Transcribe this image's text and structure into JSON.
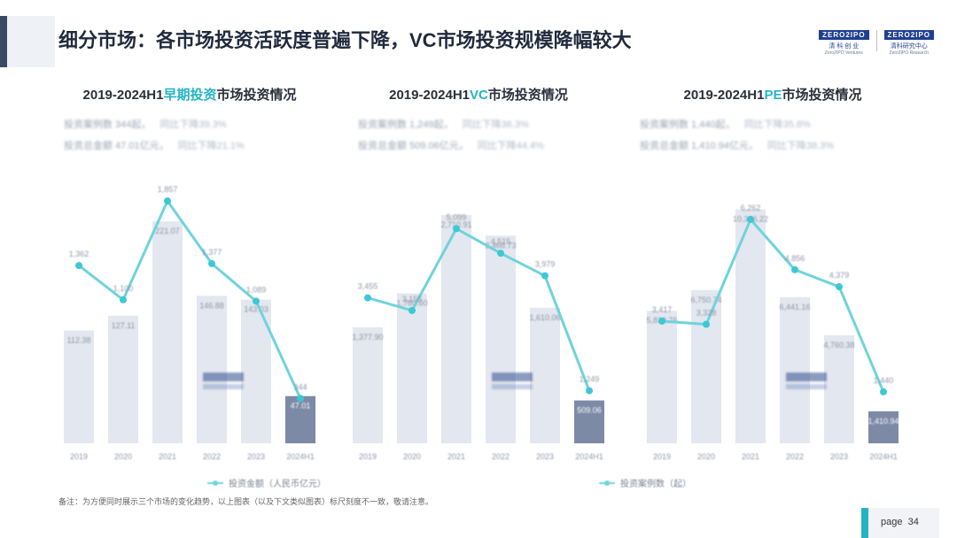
{
  "header": {
    "title": "细分市场：各市场投资活跃度普遍下降，VC市场投资规模降幅较大",
    "logo1": {
      "mark": "ZERO2IPO",
      "cn": "清 科 创 业",
      "en": "Zero2IPO Ventures"
    },
    "logo2": {
      "mark": "ZERO2IPO",
      "cn": "清科研究中心",
      "en": "Zero2IPO Research"
    }
  },
  "note": "备注：为方便同时展示三个市场的变化趋势，以上图表（以及下文类似图表）标尺刻度不一致，敬请注意。",
  "page": {
    "label": "page",
    "number": "34"
  },
  "legend": {
    "line": "投资案例数（起）",
    "bar": "投资金额（人民币亿元）"
  },
  "colors": {
    "bar": "#e3e7ef",
    "bar_last": "#7c8aa6",
    "line": "#6fd3dc",
    "accent": "#23b4c4",
    "title": "#1f2a3c"
  },
  "chart_data": [
    {
      "type": "bar",
      "title_pre": "2019-2024H1",
      "title_hl": "早期投资",
      "title_post": "市场投资情况",
      "stats": [
        {
          "label": "投资案例数 344起，",
          "yoy": "同比下降39.3%"
        },
        {
          "label": "投资总金额 47.01亿元，",
          "yoy": "同比下降21.1%"
        }
      ],
      "categories": [
        "2019",
        "2020",
        "2021",
        "2022",
        "2023",
        "2024H1"
      ],
      "series": [
        {
          "name": "投资金额（人民币亿元）",
          "kind": "bar",
          "values": [
            112.38,
            127.11,
            221.07,
            146.88,
            143.03,
            47.01
          ],
          "labels": [
            "112.38",
            "127.11",
            "221.07",
            "146.88",
            "143.03",
            "47.01"
          ]
        },
        {
          "name": "投资案例数（起）",
          "kind": "line",
          "values": [
            1362,
            1100,
            1857,
            1377,
            1089,
            344
          ],
          "labels": [
            "1,362",
            "1,100",
            "1,857",
            "1,377",
            "1,089",
            "344"
          ]
        }
      ],
      "bar_max": 260,
      "line_range": [
        0,
        2000
      ]
    },
    {
      "type": "bar",
      "title_pre": "2019-2024H1",
      "title_hl": "VC",
      "title_post": "市场投资情况",
      "stats": [
        {
          "label": "投资案例数 1,249起，",
          "yoy": "同比下降36.3%"
        },
        {
          "label": "投资总金额 509.06亿元，",
          "yoy": "同比下降44.4%"
        }
      ],
      "categories": [
        "2019",
        "2020",
        "2021",
        "2022",
        "2023",
        "2024H1"
      ],
      "series": [
        {
          "name": "投资金额（人民币亿元）",
          "kind": "bar",
          "values": [
            1377.9,
            1780.6,
            2710.91,
            2466.73,
            1610.06,
            509.06
          ],
          "labels": [
            "1,377.90",
            "1,780.60",
            "2,710.91",
            "2,466.73",
            "1,610.06",
            "509.06"
          ]
        },
        {
          "name": "投资案例数（起）",
          "kind": "line",
          "values": [
            3455,
            3155,
            5099,
            4515,
            3979,
            1249
          ],
          "labels": [
            "3,455",
            "3,155",
            "5,099",
            "4,515",
            "3,979",
            "1,249"
          ]
        }
      ],
      "bar_max": 3100,
      "line_range": [
        0,
        6200
      ]
    },
    {
      "type": "bar",
      "title_pre": "2019-2024H1",
      "title_hl": "PE",
      "title_post": "市场投资情况",
      "stats": [
        {
          "label": "投资案例数 1,440起，",
          "yoy": "同比下降35.8%"
        },
        {
          "label": "投资总金额 1,410.94亿元，",
          "yoy": "同比下降38.3%"
        }
      ],
      "categories": [
        "2019",
        "2020",
        "2021",
        "2022",
        "2023",
        "2024H1"
      ],
      "series": [
        {
          "name": "投资金额（人民币亿元）",
          "kind": "bar",
          "values": [
            5839.76,
            6750.74,
            10306.22,
            6441.16,
            4760.38,
            1410.94
          ],
          "labels": [
            "5,839.76",
            "6,750.74",
            "10,306.22",
            "6,441.16",
            "4,760.38",
            "1,410.94"
          ]
        },
        {
          "name": "投资案例数（起）",
          "kind": "line",
          "values": [
            3417,
            3328,
            6262,
            4856,
            4379,
            1440
          ],
          "labels": [
            "3,417",
            "3,328",
            "6,262",
            "4,856",
            "4,379",
            "1,440"
          ]
        }
      ],
      "bar_max": 11500,
      "line_range": [
        0,
        7300
      ]
    }
  ]
}
